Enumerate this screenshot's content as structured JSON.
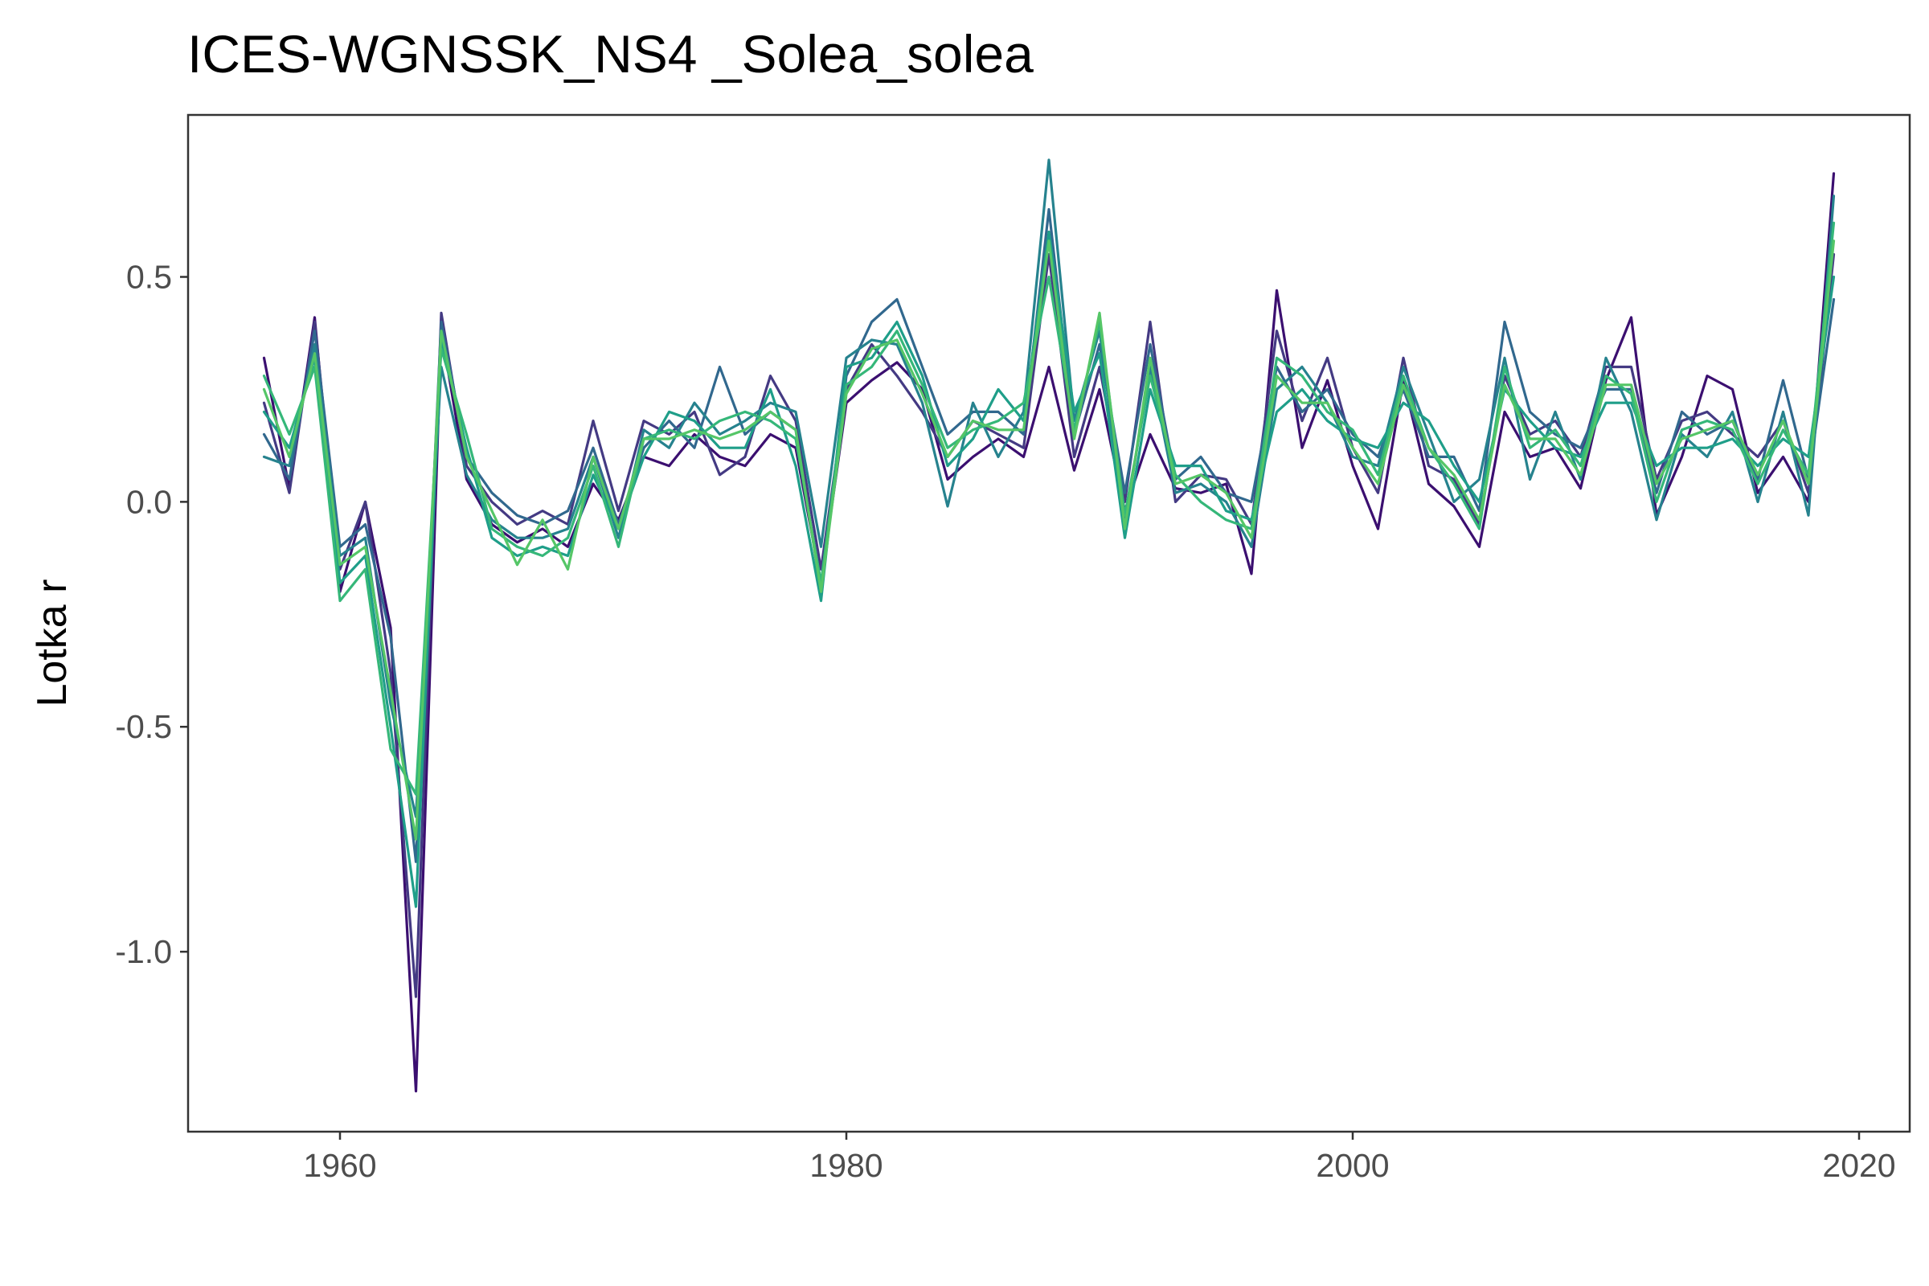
{
  "chart_data": {
    "type": "line",
    "title": "ICES-WGNSSK_NS4 _Solea_solea",
    "xlabel": "",
    "ylabel": "Lotka r",
    "xlim": [
      1954,
      2022
    ],
    "ylim": [
      -1.4,
      0.86
    ],
    "x_ticks": [
      1960,
      1980,
      2000,
      2020
    ],
    "y_ticks": [
      0.5,
      0.0,
      -0.5,
      -1.0
    ],
    "x_tick_labels": [
      "1960",
      "1980",
      "2000",
      "2020"
    ],
    "y_tick_labels": [
      "0.5",
      "0.0",
      "-0.5",
      "-1.0"
    ],
    "grid": false,
    "legend": "none",
    "palette": [
      "#3b0f70",
      "#443a83",
      "#31688e",
      "#26828e",
      "#1f9e89",
      "#35b779",
      "#55c667"
    ],
    "x": [
      1957,
      1958,
      1959,
      1960,
      1961,
      1962,
      1963,
      1964,
      1965,
      1966,
      1967,
      1968,
      1969,
      1970,
      1971,
      1972,
      1973,
      1974,
      1975,
      1976,
      1977,
      1978,
      1979,
      1980,
      1981,
      1982,
      1983,
      1984,
      1985,
      1986,
      1987,
      1988,
      1989,
      1990,
      1991,
      1992,
      1993,
      1994,
      1995,
      1996,
      1997,
      1998,
      1999,
      2000,
      2001,
      2002,
      2003,
      2004,
      2005,
      2006,
      2007,
      2008,
      2009,
      2010,
      2011,
      2012,
      2013,
      2014,
      2015,
      2016,
      2017,
      2018,
      2019
    ],
    "series": [
      {
        "values": [
          0.32,
          0.03,
          0.41,
          -0.2,
          0.0,
          -0.28,
          -1.31,
          0.38,
          0.05,
          -0.05,
          -0.09,
          -0.06,
          -0.1,
          0.04,
          -0.04,
          0.1,
          0.08,
          0.15,
          0.1,
          0.08,
          0.15,
          0.12,
          -0.18,
          0.22,
          0.27,
          0.31,
          0.25,
          0.05,
          0.1,
          0.14,
          0.1,
          0.3,
          0.07,
          0.25,
          -0.02,
          0.15,
          0.03,
          0.02,
          0.04,
          -0.16,
          0.47,
          0.12,
          0.27,
          0.08,
          -0.06,
          0.27,
          0.04,
          -0.01,
          -0.1,
          0.2,
          0.1,
          0.12,
          0.03,
          0.27,
          0.41,
          -0.03,
          0.1,
          0.28,
          0.25,
          0.02,
          0.1,
          0.0,
          0.73
        ]
      },
      {
        "values": [
          0.22,
          0.02,
          0.4,
          -0.15,
          0.0,
          -0.38,
          -1.1,
          0.42,
          0.08,
          0.0,
          -0.05,
          -0.02,
          -0.05,
          0.18,
          -0.02,
          0.18,
          0.15,
          0.2,
          0.06,
          0.1,
          0.28,
          0.18,
          -0.15,
          0.25,
          0.35,
          0.28,
          0.2,
          0.1,
          0.18,
          0.15,
          0.12,
          0.55,
          0.1,
          0.3,
          0.0,
          0.4,
          0.0,
          0.06,
          0.05,
          -0.05,
          0.38,
          0.18,
          0.32,
          0.12,
          0.02,
          0.32,
          0.08,
          0.05,
          -0.05,
          0.28,
          0.15,
          0.18,
          0.1,
          0.3,
          0.3,
          0.05,
          0.18,
          0.2,
          0.15,
          0.1,
          0.18,
          0.02,
          0.55
        ]
      },
      {
        "values": [
          0.15,
          0.05,
          0.38,
          -0.1,
          -0.05,
          -0.3,
          -0.8,
          0.4,
          0.1,
          0.02,
          -0.03,
          -0.05,
          -0.02,
          0.12,
          -0.05,
          0.12,
          0.18,
          0.12,
          0.3,
          0.15,
          0.2,
          0.16,
          -0.2,
          0.28,
          0.4,
          0.45,
          0.3,
          0.15,
          0.2,
          0.2,
          0.15,
          0.65,
          0.15,
          0.35,
          0.02,
          0.35,
          0.05,
          0.1,
          0.02,
          0.0,
          0.3,
          0.2,
          0.25,
          0.15,
          0.1,
          0.25,
          0.1,
          0.1,
          -0.02,
          0.4,
          0.2,
          0.15,
          0.12,
          0.25,
          0.25,
          0.02,
          0.2,
          0.15,
          0.18,
          0.05,
          0.27,
          0.05,
          0.45
        ]
      },
      {
        "values": [
          0.1,
          0.08,
          0.35,
          -0.12,
          -0.08,
          -0.45,
          -0.7,
          0.3,
          0.06,
          -0.04,
          -0.08,
          -0.08,
          -0.06,
          0.1,
          -0.08,
          0.16,
          0.12,
          0.22,
          0.15,
          0.18,
          0.22,
          0.2,
          -0.1,
          0.32,
          0.36,
          0.35,
          0.22,
          -0.01,
          0.22,
          0.1,
          0.2,
          0.76,
          0.18,
          0.38,
          -0.05,
          0.3,
          0.02,
          0.04,
          0.0,
          -0.1,
          0.25,
          0.3,
          0.22,
          0.1,
          0.08,
          0.3,
          0.15,
          0.0,
          0.05,
          0.32,
          0.05,
          0.2,
          0.05,
          0.32,
          0.2,
          -0.04,
          0.15,
          0.1,
          0.2,
          0.0,
          0.2,
          -0.03,
          0.68
        ]
      },
      {
        "values": [
          0.2,
          0.12,
          0.32,
          -0.18,
          -0.12,
          -0.5,
          -0.9,
          0.36,
          0.12,
          -0.08,
          -0.12,
          -0.1,
          -0.12,
          0.06,
          -0.06,
          0.1,
          0.2,
          0.18,
          0.12,
          0.12,
          0.25,
          0.08,
          -0.22,
          0.3,
          0.32,
          0.4,
          0.28,
          0.08,
          0.14,
          0.25,
          0.18,
          0.6,
          0.2,
          0.33,
          -0.08,
          0.25,
          0.08,
          0.08,
          -0.02,
          -0.04,
          0.2,
          0.25,
          0.18,
          0.14,
          0.12,
          0.22,
          0.18,
          0.08,
          0.0,
          0.25,
          0.18,
          0.12,
          0.1,
          0.22,
          0.22,
          0.08,
          0.12,
          0.12,
          0.14,
          0.08,
          0.14,
          0.1,
          0.5
        ]
      },
      {
        "values": [
          0.28,
          0.15,
          0.3,
          -0.22,
          -0.15,
          -0.55,
          -0.65,
          0.34,
          0.15,
          -0.06,
          -0.1,
          -0.12,
          -0.08,
          0.08,
          -0.1,
          0.14,
          0.16,
          0.14,
          0.18,
          0.2,
          0.18,
          0.14,
          -0.18,
          0.26,
          0.3,
          0.38,
          0.26,
          0.12,
          0.16,
          0.18,
          0.22,
          0.5,
          0.16,
          0.4,
          -0.03,
          0.28,
          0.06,
          0.0,
          -0.04,
          -0.06,
          0.32,
          0.28,
          0.2,
          0.16,
          0.06,
          0.28,
          0.12,
          0.04,
          -0.06,
          0.3,
          0.12,
          0.16,
          0.08,
          0.28,
          0.24,
          0.0,
          0.16,
          0.18,
          0.16,
          0.04,
          0.16,
          0.06,
          0.62
        ]
      },
      {
        "values": [
          0.25,
          0.1,
          0.33,
          -0.14,
          -0.1,
          -0.42,
          -0.75,
          0.38,
          0.1,
          -0.02,
          -0.14,
          -0.04,
          -0.15,
          0.1,
          -0.06,
          0.14,
          0.14,
          0.16,
          0.14,
          0.16,
          0.2,
          0.16,
          -0.2,
          0.24,
          0.34,
          0.36,
          0.24,
          0.1,
          0.18,
          0.16,
          0.16,
          0.58,
          0.14,
          0.42,
          -0.06,
          0.32,
          0.04,
          0.06,
          0.02,
          -0.08,
          0.28,
          0.22,
          0.22,
          0.12,
          0.04,
          0.26,
          0.12,
          0.06,
          -0.04,
          0.26,
          0.14,
          0.14,
          0.06,
          0.26,
          0.26,
          0.04,
          0.14,
          0.16,
          0.18,
          0.06,
          0.18,
          0.04,
          0.58
        ]
      }
    ]
  }
}
